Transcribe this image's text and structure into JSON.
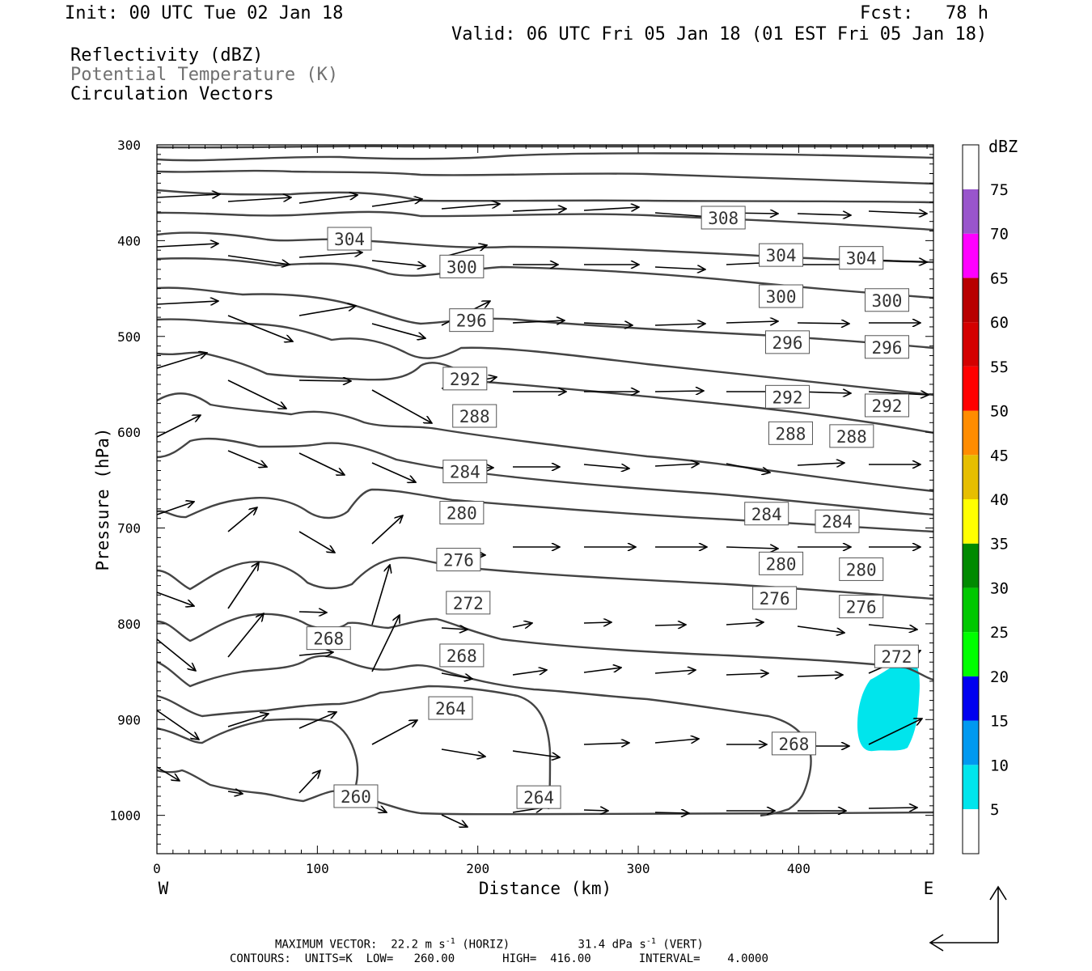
{
  "header": {
    "init": "Init: 00 UTC Tue 02 Jan 18",
    "fcst": "Fcst:   78 h",
    "valid": "Valid: 06 UTC Fri 05 Jan 18 (01 EST Fri 05 Jan 18)",
    "fields": [
      "Reflectivity (dBZ)",
      "Potential Temperature (K)",
      "Circulation Vectors"
    ]
  },
  "footer": {
    "max_vector_label": "MAXIMUM VECTOR:",
    "max_vector_horiz": "22.2 m s",
    "max_vector_horiz_unit": " (HORIZ)",
    "max_vector_vert": "31.4 dPa s",
    "max_vector_vert_unit": " (VERT)",
    "exponent": "-1",
    "contours": "CONTOURS:  UNITS=K  LOW=   260.00       HIGH=  416.00       INTERVAL=    4.0000"
  },
  "colors": {
    "contour": "#444444",
    "arrow": "#000000",
    "reflectivity_5": "#00e5ec",
    "colorbar": [
      "#00e5ec",
      "#0099f0",
      "#0000f0",
      "#00ff00",
      "#00c800",
      "#008a00",
      "#ffff00",
      "#e6be00",
      "#ff8c00",
      "#ff0000",
      "#d40000",
      "#b80000",
      "#ff00ff",
      "#9955cc"
    ]
  },
  "chart_data": {
    "type": "cross-section",
    "xlabel": "Distance (km)",
    "ylabel": "Pressure (hPa)",
    "x_ticks": [
      0,
      100,
      200,
      300,
      400
    ],
    "y_ticks": [
      300,
      400,
      500,
      600,
      700,
      800,
      900,
      1000
    ],
    "xlim": [
      0,
      484
    ],
    "ylim": [
      1040,
      300
    ],
    "x_end_labels": {
      "left": "W",
      "right": "E"
    },
    "colorbar": {
      "unit": "dBZ",
      "ticks": [
        5,
        10,
        15,
        20,
        25,
        30,
        35,
        40,
        45,
        50,
        55,
        60,
        65,
        70,
        75
      ]
    },
    "reflectivity_region": {
      "value_dBZ_min": 5,
      "x_km": [
        440,
        480
      ],
      "pressure_hPa": [
        840,
        930
      ]
    },
    "isentropes_K": [
      {
        "value": "308",
        "labels": [
          [
            353,
            376
          ]
        ]
      },
      {
        "value": "304",
        "labels": [
          [
            120,
            398
          ],
          [
            389,
            415
          ],
          [
            439,
            418
          ]
        ]
      },
      {
        "value": "300",
        "labels": [
          [
            190,
            427
          ],
          [
            389,
            458
          ],
          [
            455,
            462
          ]
        ]
      },
      {
        "value": "296",
        "labels": [
          [
            196,
            483
          ],
          [
            393,
            506
          ],
          [
            455,
            511
          ]
        ]
      },
      {
        "value": "292",
        "labels": [
          [
            192,
            544
          ],
          [
            393,
            563
          ],
          [
            455,
            572
          ]
        ]
      },
      {
        "value": "288",
        "labels": [
          [
            198,
            583
          ],
          [
            395,
            601
          ],
          [
            433,
            604
          ]
        ]
      },
      {
        "value": "284",
        "labels": [
          [
            192,
            641
          ],
          [
            380,
            685
          ],
          [
            424,
            693
          ]
        ]
      },
      {
        "value": "280",
        "labels": [
          [
            190,
            684
          ],
          [
            389,
            737
          ],
          [
            439,
            743
          ]
        ]
      },
      {
        "value": "276",
        "labels": [
          [
            188,
            733
          ],
          [
            385,
            773
          ],
          [
            439,
            782
          ]
        ]
      },
      {
        "value": "272",
        "labels": [
          [
            194,
            778
          ],
          [
            461,
            834
          ]
        ]
      },
      {
        "value": "268",
        "labels": [
          [
            107,
            815
          ],
          [
            190,
            833
          ],
          [
            397,
            925
          ]
        ]
      },
      {
        "value": "264",
        "labels": [
          [
            183,
            888
          ],
          [
            238,
            981
          ]
        ]
      },
      {
        "value": "260",
        "labels": [
          [
            124,
            980
          ]
        ]
      }
    ]
  }
}
